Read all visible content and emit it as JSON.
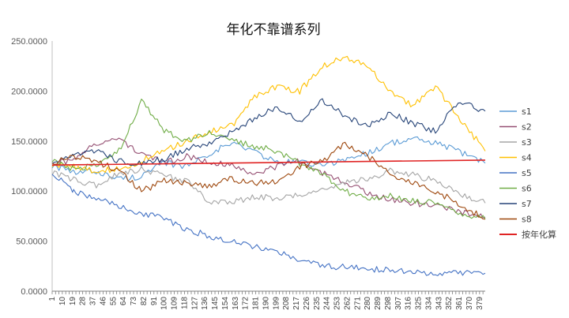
{
  "chart_data": {
    "type": "line",
    "title": "年化不靠谱系列",
    "xlabel": "",
    "ylabel": "",
    "ylim": [
      0,
      250
    ],
    "y_ticks": [
      "0.0000",
      "50.0000",
      "100.0000",
      "150.0000",
      "200.0000",
      "250.0000"
    ],
    "x_range": [
      1,
      384
    ],
    "x_ticks": [
      "1",
      "10",
      "19",
      "28",
      "37",
      "46",
      "55",
      "64",
      "73",
      "82",
      "91",
      "100",
      "109",
      "118",
      "127",
      "136",
      "145",
      "154",
      "163",
      "172",
      "181",
      "190",
      "199",
      "208",
      "217",
      "226",
      "235",
      "244",
      "253",
      "262",
      "271",
      "280",
      "289",
      "298",
      "307",
      "316",
      "325",
      "334",
      "343",
      "352",
      "361",
      "370",
      "379"
    ],
    "grid": false,
    "legend_position": "right",
    "series": [
      {
        "name": "s1",
        "color": "#5B9BD5",
        "x": [
          1,
          20,
          40,
          60,
          80,
          100,
          120,
          140,
          160,
          180,
          200,
          220,
          240,
          260,
          280,
          300,
          320,
          340,
          360,
          384
        ],
        "values": [
          126,
          118,
          120,
          112,
          115,
          128,
          125,
          138,
          148,
          140,
          128,
          130,
          125,
          132,
          138,
          148,
          152,
          148,
          140,
          128
        ]
      },
      {
        "name": "s2",
        "color": "#954F72",
        "x": [
          1,
          20,
          40,
          60,
          80,
          100,
          120,
          140,
          160,
          180,
          200,
          220,
          240,
          260,
          280,
          300,
          320,
          340,
          360,
          384
        ],
        "values": [
          128,
          130,
          148,
          152,
          138,
          128,
          135,
          130,
          125,
          118,
          125,
          130,
          118,
          110,
          98,
          92,
          88,
          85,
          80,
          74
        ]
      },
      {
        "name": "s3",
        "color": "#A5A5A5",
        "x": [
          1,
          20,
          40,
          60,
          80,
          100,
          120,
          140,
          160,
          180,
          200,
          220,
          240,
          260,
          280,
          300,
          320,
          340,
          360,
          384
        ],
        "values": [
          118,
          112,
          105,
          118,
          122,
          115,
          110,
          90,
          88,
          95,
          92,
          96,
          102,
          108,
          112,
          120,
          116,
          110,
          98,
          88
        ]
      },
      {
        "name": "s4",
        "color": "#FFC000",
        "x": [
          1,
          20,
          40,
          60,
          80,
          100,
          120,
          140,
          160,
          180,
          200,
          220,
          240,
          260,
          280,
          300,
          320,
          340,
          360,
          384
        ],
        "values": [
          126,
          125,
          120,
          122,
          130,
          140,
          150,
          160,
          165,
          195,
          205,
          200,
          225,
          235,
          225,
          200,
          185,
          205,
          175,
          140
        ]
      },
      {
        "name": "s5",
        "color": "#4472C4",
        "x": [
          1,
          20,
          40,
          60,
          80,
          100,
          120,
          140,
          160,
          180,
          200,
          220,
          240,
          260,
          280,
          300,
          320,
          340,
          360,
          384
        ],
        "values": [
          118,
          100,
          92,
          85,
          78,
          72,
          62,
          55,
          50,
          45,
          40,
          30,
          25,
          24,
          22,
          21,
          19,
          17,
          18,
          18
        ]
      },
      {
        "name": "s6",
        "color": "#70AD47",
        "x": [
          1,
          20,
          40,
          60,
          80,
          100,
          120,
          140,
          160,
          180,
          200,
          220,
          240,
          260,
          280,
          300,
          320,
          340,
          360,
          384
        ],
        "values": [
          130,
          122,
          125,
          140,
          190,
          160,
          150,
          160,
          150,
          145,
          140,
          128,
          118,
          100,
          92,
          95,
          90,
          88,
          78,
          72
        ]
      },
      {
        "name": "s7",
        "color": "#264478",
        "x": [
          1,
          20,
          40,
          60,
          80,
          100,
          120,
          140,
          160,
          180,
          200,
          220,
          240,
          260,
          280,
          300,
          320,
          340,
          360,
          384
        ],
        "values": [
          128,
          135,
          140,
          130,
          128,
          132,
          142,
          148,
          160,
          172,
          185,
          170,
          190,
          175,
          165,
          178,
          168,
          160,
          190,
          180
        ]
      },
      {
        "name": "s8",
        "color": "#9E480E",
        "x": [
          1,
          20,
          40,
          60,
          80,
          100,
          120,
          140,
          160,
          180,
          200,
          220,
          240,
          260,
          280,
          300,
          320,
          340,
          360,
          384
        ],
        "values": [
          128,
          135,
          130,
          120,
          100,
          110,
          108,
          105,
          112,
          108,
          110,
          125,
          130,
          148,
          135,
          118,
          108,
          100,
          88,
          72
        ]
      },
      {
        "name": "按年化算",
        "color": "#E02424",
        "x": [
          1,
          384
        ],
        "values": [
          126,
          131
        ]
      }
    ]
  }
}
